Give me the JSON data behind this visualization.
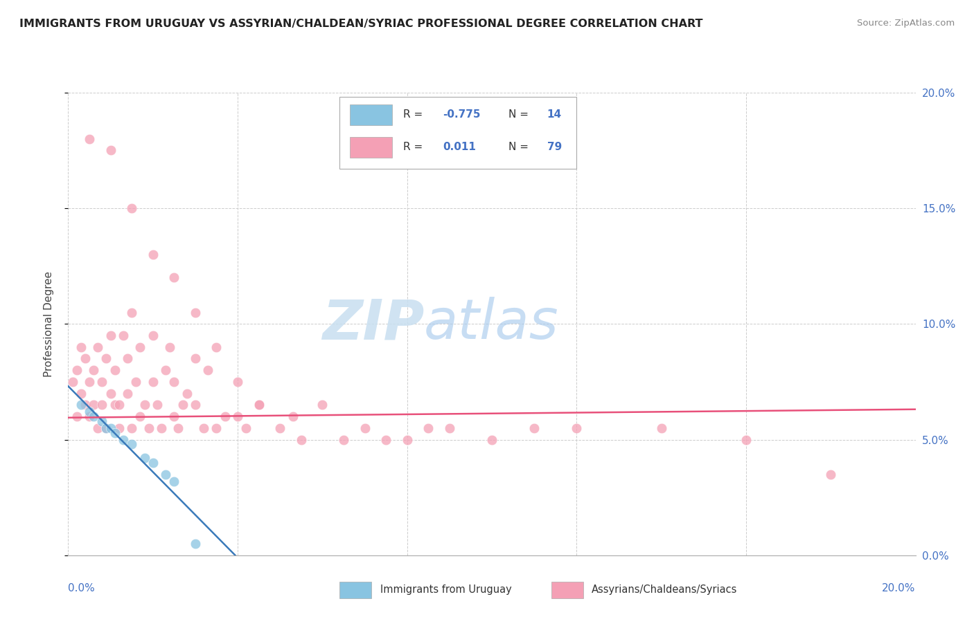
{
  "title": "IMMIGRANTS FROM URUGUAY VS ASSYRIAN/CHALDEAN/SYRIAC PROFESSIONAL DEGREE CORRELATION CHART",
  "source": "Source: ZipAtlas.com",
  "ylabel": "Professional Degree",
  "ytick_values": [
    0.0,
    5.0,
    10.0,
    15.0,
    20.0
  ],
  "xlim": [
    0.0,
    20.0
  ],
  "ylim": [
    0.0,
    20.0
  ],
  "color_blue": "#89c4e1",
  "color_pink": "#f4a0b5",
  "color_blue_line": "#3a7aba",
  "color_pink_line": "#e8507a",
  "watermark_zip": "ZIP",
  "watermark_atlas": "atlas",
  "legend_label1": "Immigrants from Uruguay",
  "legend_label2": "Assyrians/Chaldeans/Syriacs",
  "blue_x": [
    0.3,
    0.5,
    0.6,
    0.8,
    0.9,
    1.0,
    1.1,
    1.3,
    1.5,
    1.8,
    2.0,
    2.3,
    2.5,
    3.0
  ],
  "blue_y": [
    6.5,
    6.2,
    6.0,
    5.8,
    5.5,
    5.5,
    5.3,
    5.0,
    4.8,
    4.2,
    4.0,
    3.5,
    3.2,
    0.5
  ],
  "pink_x": [
    0.1,
    0.2,
    0.2,
    0.3,
    0.3,
    0.4,
    0.4,
    0.5,
    0.5,
    0.6,
    0.6,
    0.7,
    0.7,
    0.8,
    0.8,
    0.9,
    0.9,
    1.0,
    1.0,
    1.1,
    1.1,
    1.2,
    1.2,
    1.3,
    1.4,
    1.4,
    1.5,
    1.5,
    1.6,
    1.7,
    1.7,
    1.8,
    1.9,
    2.0,
    2.0,
    2.1,
    2.2,
    2.3,
    2.4,
    2.5,
    2.5,
    2.6,
    2.7,
    2.8,
    3.0,
    3.0,
    3.2,
    3.3,
    3.5,
    3.7,
    4.0,
    4.2,
    4.5,
    5.0,
    5.3,
    5.5,
    6.0,
    6.5,
    7.0,
    7.5,
    8.0,
    8.5,
    9.0,
    10.0,
    11.0,
    12.0,
    14.0,
    16.0,
    18.0,
    0.5,
    1.0,
    1.5,
    2.0,
    2.5,
    3.0,
    3.5,
    4.0,
    4.5
  ],
  "pink_y": [
    7.5,
    6.0,
    8.0,
    7.0,
    9.0,
    6.5,
    8.5,
    7.5,
    6.0,
    6.5,
    8.0,
    5.5,
    9.0,
    6.5,
    7.5,
    8.5,
    5.5,
    7.0,
    9.5,
    6.5,
    8.0,
    5.5,
    6.5,
    9.5,
    7.0,
    8.5,
    10.5,
    5.5,
    7.5,
    6.0,
    9.0,
    6.5,
    5.5,
    7.5,
    9.5,
    6.5,
    5.5,
    8.0,
    9.0,
    6.0,
    7.5,
    5.5,
    6.5,
    7.0,
    6.5,
    8.5,
    5.5,
    8.0,
    5.5,
    6.0,
    6.0,
    5.5,
    6.5,
    5.5,
    6.0,
    5.0,
    6.5,
    5.0,
    5.5,
    5.0,
    5.0,
    5.5,
    5.5,
    5.0,
    5.5,
    5.5,
    5.5,
    5.0,
    3.5,
    18.0,
    17.5,
    15.0,
    13.0,
    12.0,
    10.5,
    9.0,
    7.5,
    6.5
  ]
}
